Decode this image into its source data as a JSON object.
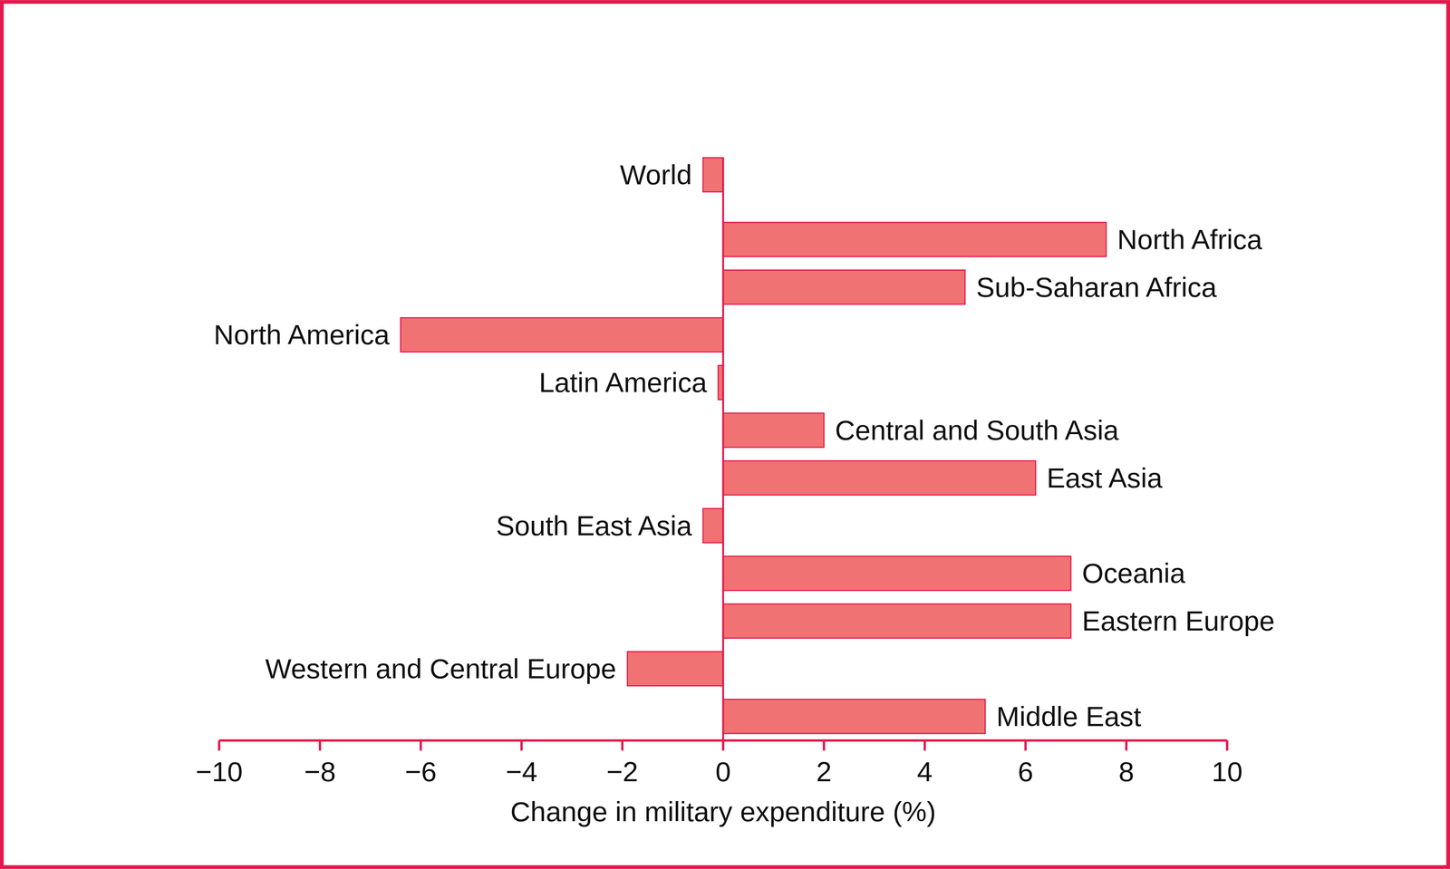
{
  "chart_data": {
    "type": "bar",
    "orientation": "horizontal",
    "x_label": "Change in military expenditure (%)",
    "categories": [
      "World",
      "North Africa",
      "Sub-Saharan Africa",
      "North America",
      "Latin America",
      "Central and South Asia",
      "East Asia",
      "South East Asia",
      "Oceania",
      "Eastern Europe",
      "Western and Central Europe",
      "Middle East"
    ],
    "values": [
      -0.4,
      7.6,
      4.8,
      -6.4,
      -0.1,
      2.0,
      6.2,
      -0.4,
      6.9,
      6.9,
      -1.9,
      5.2
    ],
    "color": "#f07272",
    "xlim": [
      -10,
      10
    ],
    "xticks": [
      {
        "value": -10,
        "label": "−10"
      },
      {
        "value": -8,
        "label": "−8"
      },
      {
        "value": -6,
        "label": "−6"
      },
      {
        "value": -4,
        "label": "−4"
      },
      {
        "value": -2,
        "label": "−2"
      },
      0,
      2,
      4,
      6,
      8,
      10
    ],
    "grid": false
  }
}
